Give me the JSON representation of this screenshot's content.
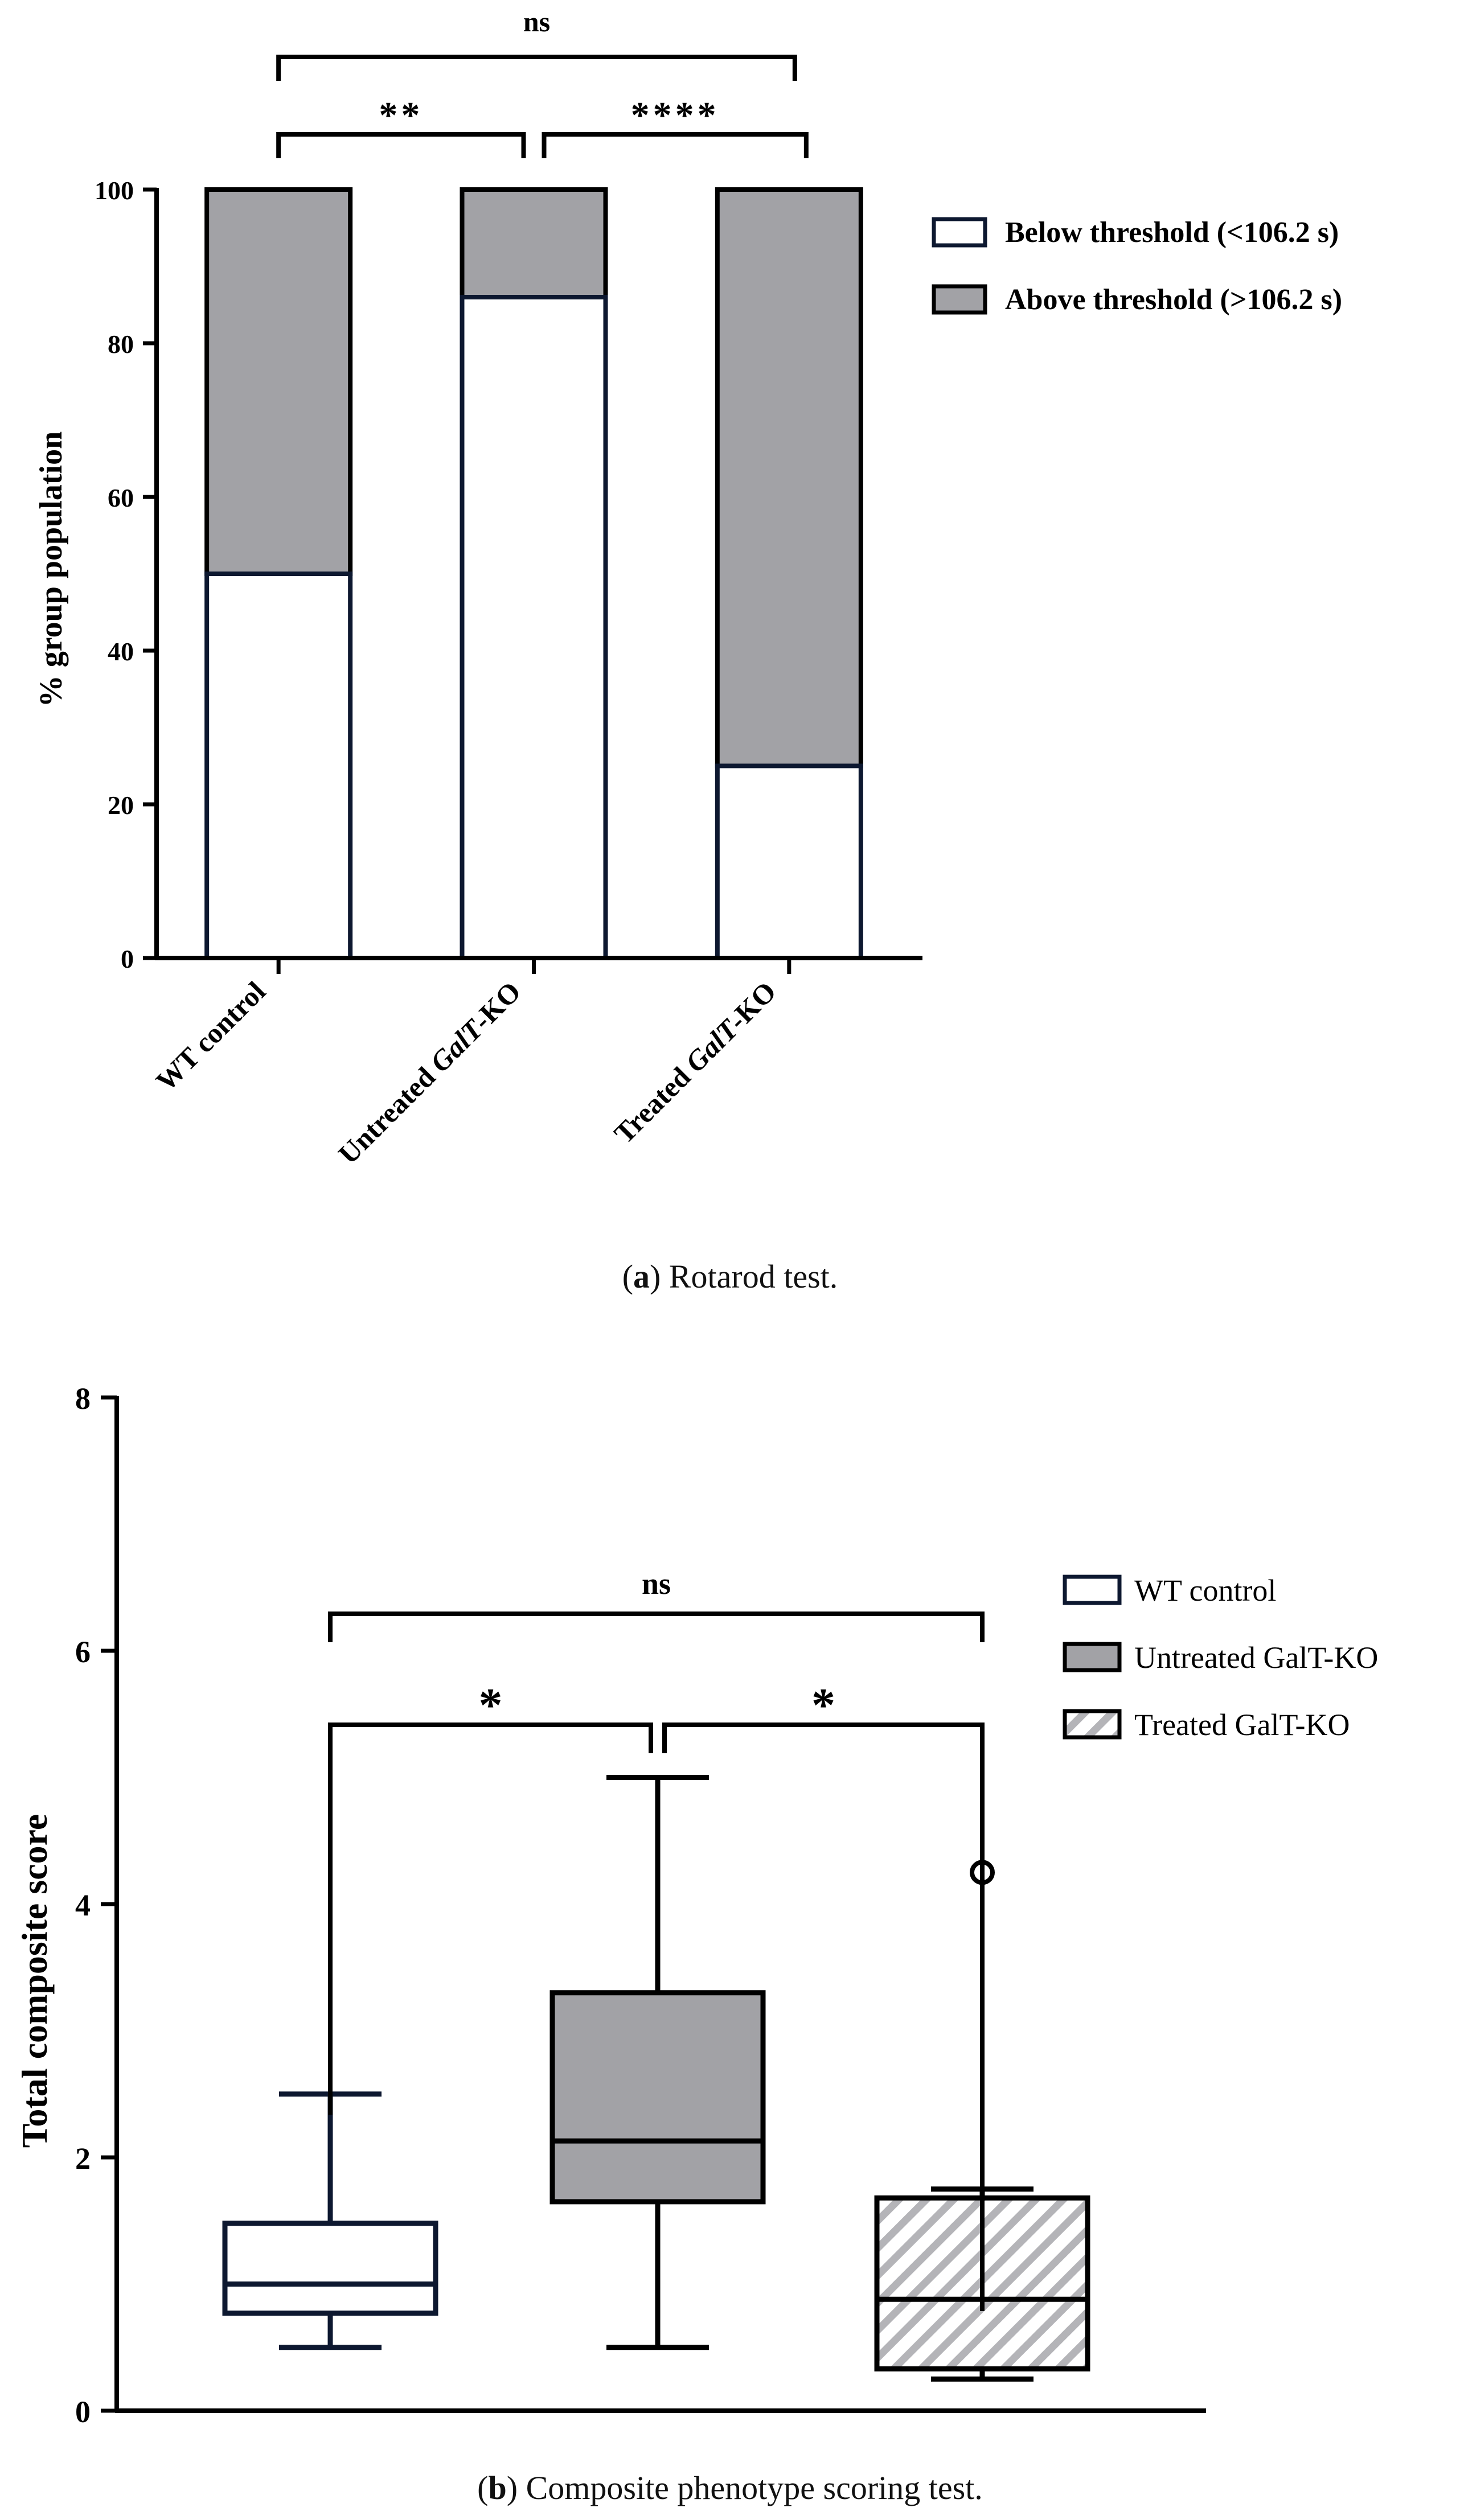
{
  "colors": {
    "axis": "#000000",
    "bar_below_fill": "#ffffff",
    "bar_below_stroke": "#0d1830",
    "bar_above_fill": "#a2a2a6",
    "box_wt_stroke": "#0d1830",
    "box_untreated_fill": "#a2a2a6",
    "hatch_line": "#b4b4b8"
  },
  "panel_a": {
    "caption_letter": "a",
    "caption_text": ") Rotarod test.",
    "caption_open": "(",
    "chart_data": {
      "type": "bar",
      "stacked": true,
      "title": "",
      "ylabel": "% group population",
      "xlabel": "",
      "ylim": [
        0,
        100
      ],
      "yticks": [
        0,
        20,
        40,
        60,
        80,
        100
      ],
      "categories": [
        {
          "prefix": "WT control",
          "italic": "",
          "suffix": ""
        },
        {
          "prefix": "Untreated ",
          "italic": "GalT",
          "suffix": "-KO"
        },
        {
          "prefix": "Treated ",
          "italic": "GalT",
          "suffix": "-KO"
        }
      ],
      "series": [
        {
          "name": "Below threshold (<106.2 s)",
          "values": [
            50,
            86,
            25
          ]
        },
        {
          "name": "Above threshold (>106.2 s)",
          "values": [
            50,
            14,
            75
          ]
        }
      ],
      "legend_position": "top-right",
      "significance": [
        {
          "from": 0,
          "to": 1,
          "label": "**"
        },
        {
          "from": 1,
          "to": 2,
          "label": "****"
        },
        {
          "from": 0,
          "to": 2,
          "label": "ns"
        }
      ]
    }
  },
  "panel_b": {
    "caption_letter": "b",
    "caption_text": ") Composite phenotype scoring test.",
    "caption_open": "(",
    "chart_data": {
      "type": "box",
      "title": "",
      "ylabel": "Total composite score",
      "xlabel": "",
      "ylim": [
        0,
        8
      ],
      "yticks": [
        0,
        2,
        4,
        6,
        8
      ],
      "series": [
        {
          "name": "WT control",
          "whisker_low": 0.5,
          "q1": 0.77,
          "median": 1.0,
          "q3": 1.48,
          "whisker_high": 2.5,
          "outliers": []
        },
        {
          "name": "Untreated GalT-KO",
          "whisker_low": 0.5,
          "q1": 1.65,
          "median": 2.13,
          "q3": 3.3,
          "whisker_high": 5.0,
          "outliers": []
        },
        {
          "name": "Treated GalT-KO",
          "whisker_low": 0.25,
          "q1": 0.33,
          "median": 0.88,
          "q3": 1.68,
          "whisker_high": 1.75,
          "outliers": [
            4.25
          ]
        }
      ],
      "legend_position": "right",
      "significance": [
        {
          "from": 0,
          "to": 1,
          "label": "*"
        },
        {
          "from": 1,
          "to": 2,
          "label": "*"
        },
        {
          "from": 0,
          "to": 2,
          "label": "ns"
        }
      ]
    }
  }
}
